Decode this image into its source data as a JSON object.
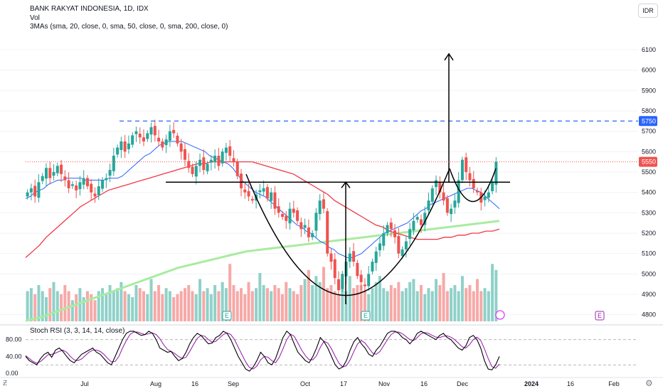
{
  "header": {
    "title": "BANK RAKYAT INDONESIA, 1D, IDX",
    "vol_label": "Vol",
    "ma_label": "3MAs (sma, 20, close, 0, sma, 50, close, 0, sma, 200, close, 0)",
    "currency": "IDR"
  },
  "rsi_label": "Stoch RSI (3, 3, 14, 14, close)",
  "colors": {
    "up": "#26a69a",
    "down": "#ef5350",
    "vol_up": "#8fd1c9",
    "vol_down": "#f6a9a7",
    "sma20": "#2962ff",
    "sma50": "#f23645",
    "sma200": "#a8ec9f",
    "rsi_k": "#000000",
    "rsi_d": "#9c27b0",
    "resistance": "#2962ff",
    "pattern": "#000000"
  },
  "chart_data": [
    {
      "type": "candlestick",
      "ylim": [
        4750,
        6180
      ],
      "yticks": [
        4800,
        4900,
        5000,
        5100,
        5200,
        5300,
        5400,
        5500,
        5600,
        5700,
        5800,
        5900,
        6000,
        6100
      ],
      "xticks": [
        "Jul",
        "Aug",
        "16",
        "Sep",
        "Oct",
        "17",
        "Nov",
        "16",
        "Dec",
        "2024",
        "16",
        "Feb"
      ],
      "price_labels": [
        {
          "value": 5750,
          "text": "5750"
        },
        {
          "value": 5550,
          "text": "5550"
        }
      ],
      "last_price": 5550,
      "resistance_level": 5750,
      "neckline": 5450,
      "target": 6080,
      "pattern": "cup and handle",
      "events": [
        "E",
        "E",
        "E"
      ],
      "closes": [
        5400,
        5420,
        5380,
        5450,
        5480,
        5520,
        5470,
        5500,
        5530,
        5490,
        5460,
        5420,
        5440,
        5410,
        5450,
        5470,
        5430,
        5400,
        5380,
        5430,
        5460,
        5470,
        5510,
        5580,
        5620,
        5650,
        5600,
        5640,
        5680,
        5700,
        5670,
        5650,
        5690,
        5720,
        5680,
        5650,
        5620,
        5660,
        5700,
        5690,
        5640,
        5600,
        5560,
        5520,
        5490,
        5530,
        5560,
        5510,
        5540,
        5560,
        5580,
        5530,
        5600,
        5620,
        5580,
        5550,
        5480,
        5420,
        5400,
        5380,
        5360,
        5390,
        5410,
        5420,
        5370,
        5400,
        5320,
        5300,
        5280,
        5260,
        5320,
        5300,
        5260,
        5220,
        5240,
        5180,
        5200,
        5300,
        5360,
        5320,
        5100,
        5060,
        4980,
        4920,
        5000,
        5060,
        5100,
        5060,
        4990,
        4960,
        4940,
        5000,
        5060,
        5110,
        5150,
        5200,
        5240,
        5220,
        5180,
        5100,
        5120,
        5160,
        5220,
        5260,
        5280,
        5240,
        5300,
        5360,
        5420,
        5460,
        5400,
        5360,
        5300,
        5320,
        5360,
        5460,
        5560,
        5500,
        5460,
        5420,
        5400,
        5350,
        5380,
        5400,
        5450,
        5550
      ],
      "sma20": [
        5370,
        5380,
        5400,
        5410,
        5420,
        5440,
        5450,
        5460,
        5460,
        5470,
        5470,
        5470,
        5470,
        5460,
        5460,
        5460,
        5460,
        5460,
        5470,
        5470,
        5470,
        5480,
        5500,
        5520,
        5540,
        5560,
        5580,
        5590,
        5610,
        5630,
        5640,
        5650,
        5650,
        5650,
        5650,
        5640,
        5630,
        5620,
        5610,
        5600,
        5580,
        5570,
        5560,
        5550,
        5540,
        5520,
        5490,
        5460,
        5440,
        5420,
        5400,
        5390,
        5380,
        5360,
        5340,
        5320,
        5300,
        5280,
        5260,
        5240,
        5230,
        5210,
        5200,
        5180,
        5160,
        5150,
        5130,
        5120,
        5100,
        5090,
        5080,
        5080,
        5090,
        5100,
        5120,
        5140,
        5160,
        5180,
        5200,
        5210,
        5220,
        5230,
        5240,
        5250,
        5270,
        5290,
        5310,
        5320,
        5340,
        5350,
        5360,
        5370,
        5380,
        5390,
        5400,
        5410,
        5420,
        5420,
        5410,
        5400,
        5380,
        5360,
        5340,
        5320
      ],
      "sma50": [
        5080,
        5110,
        5140,
        5180,
        5210,
        5240,
        5270,
        5300,
        5330,
        5350,
        5370,
        5390,
        5410,
        5420,
        5430,
        5440,
        5450,
        5460,
        5470,
        5480,
        5490,
        5500,
        5510,
        5520,
        5530,
        5540,
        5540,
        5550,
        5550,
        5550,
        5550,
        5550,
        5550,
        5550,
        5540,
        5530,
        5520,
        5510,
        5500,
        5490,
        5470,
        5450,
        5430,
        5410,
        5390,
        5360,
        5340,
        5320,
        5300,
        5280,
        5260,
        5240,
        5230,
        5210,
        5200,
        5190,
        5180,
        5170,
        5170,
        5170,
        5170,
        5180,
        5180,
        5190,
        5190,
        5200,
        5200,
        5210,
        5210,
        5220
      ],
      "sma200": [
        4770,
        4790,
        4820,
        4850,
        4880,
        4910,
        4940,
        4970,
        5000,
        5030,
        5050,
        5070,
        5090,
        5110,
        5120,
        5130,
        5140,
        5150,
        5160,
        5170,
        5180,
        5190,
        5200,
        5210,
        5220,
        5230,
        5240,
        5250,
        5260
      ],
      "volumes": [
        0.5,
        0.55,
        0.45,
        0.6,
        0.5,
        0.4,
        0.55,
        0.65,
        0.5,
        0.45,
        0.6,
        0.5,
        0.35,
        0.45,
        0.55,
        0.4,
        0.5,
        0.45,
        0.35,
        0.5,
        0.55,
        0.45,
        0.6,
        0.5,
        0.55,
        0.65,
        0.5,
        0.45,
        0.4,
        0.6,
        0.55,
        0.5,
        0.45,
        0.7,
        0.5,
        0.6,
        0.45,
        0.55,
        0.5,
        0.4,
        0.45,
        0.5,
        0.55,
        0.6,
        0.5,
        0.45,
        0.7,
        0.5,
        0.55,
        0.45,
        0.6,
        0.5,
        0.65,
        0.55,
        0.95,
        0.6,
        0.5,
        0.55,
        0.45,
        0.65,
        0.5,
        0.55,
        0.8,
        0.6,
        0.55,
        0.5,
        0.6,
        0.55,
        0.45,
        0.65,
        0.55,
        0.5,
        0.45,
        0.6,
        0.7,
        0.85,
        0.6,
        0.75,
        0.65,
        0.9,
        0.55,
        0.6,
        0.5,
        0.45,
        0.65,
        0.5,
        0.75,
        0.55,
        0.6,
        0.6,
        0.5,
        0.45,
        0.55,
        0.65,
        0.75,
        0.55,
        0.5,
        0.6,
        0.55,
        0.65,
        0.5,
        0.55,
        0.65,
        0.7,
        0.5,
        0.6,
        0.45,
        0.55,
        0.5,
        0.7,
        0.6,
        0.8,
        0.5,
        0.55,
        0.6,
        0.5,
        0.75,
        0.55,
        0.6,
        0.5,
        0.7,
        0.5,
        0.55,
        0.5,
        0.95,
        0.85
      ]
    },
    {
      "type": "line",
      "name": "Stoch RSI",
      "ylim": [
        -5,
        110
      ],
      "yticks": [
        0,
        40,
        80
      ],
      "ytick_labels": [
        "0.00",
        "40.00",
        "80.00"
      ],
      "bands": [
        20,
        80
      ],
      "k": [
        40,
        30,
        25,
        20,
        35,
        45,
        50,
        38,
        55,
        60,
        52,
        40,
        30,
        25,
        35,
        45,
        50,
        55,
        60,
        50,
        45,
        35,
        25,
        20,
        40,
        60,
        80,
        95,
        100,
        100,
        95,
        90,
        92,
        100,
        95,
        80,
        60,
        55,
        50,
        52,
        40,
        30,
        35,
        50,
        70,
        85,
        95,
        90,
        80,
        70,
        72,
        85,
        90,
        100,
        95,
        80,
        60,
        40,
        25,
        10,
        5,
        15,
        30,
        50,
        40,
        25,
        20,
        35,
        60,
        85,
        100,
        92,
        70,
        50,
        40,
        30,
        25,
        40,
        60,
        85,
        75,
        60,
        40,
        20,
        10,
        15,
        30,
        55,
        75,
        85,
        70,
        60,
        45,
        40,
        55,
        65,
        80,
        95,
        100,
        100,
        95,
        85,
        80,
        70,
        80,
        95,
        100,
        95,
        90,
        85,
        80,
        90,
        95,
        85,
        80,
        70,
        60,
        55,
        65,
        85,
        90,
        80,
        60,
        30,
        10,
        8,
        20,
        40
      ],
      "d": [
        42,
        35,
        28,
        24,
        28,
        36,
        44,
        45,
        48,
        52,
        55,
        50,
        40,
        32,
        30,
        34,
        42,
        50,
        55,
        55,
        52,
        45,
        35,
        27,
        28,
        40,
        60,
        78,
        92,
        98,
        98,
        95,
        92,
        94,
        96,
        92,
        82,
        68,
        57,
        52,
        47,
        40,
        35,
        38,
        52,
        68,
        83,
        90,
        88,
        80,
        74,
        76,
        84,
        92,
        96,
        92,
        80,
        62,
        44,
        27,
        14,
        10,
        17,
        32,
        40,
        38,
        30,
        25,
        38,
        58,
        80,
        93,
        88,
        72,
        55,
        42,
        32,
        32,
        42,
        62,
        76,
        72,
        58,
        40,
        24,
        15,
        18,
        32,
        52,
        70,
        78,
        72,
        60,
        48,
        45,
        52,
        66,
        80,
        92,
        98,
        98,
        94,
        87,
        80,
        78,
        85,
        94,
        97,
        95,
        90,
        86,
        85,
        88,
        89,
        86,
        80,
        72,
        63,
        60,
        68,
        80,
        86,
        78,
        58,
        35,
        16,
        12,
        22
      ]
    }
  ]
}
